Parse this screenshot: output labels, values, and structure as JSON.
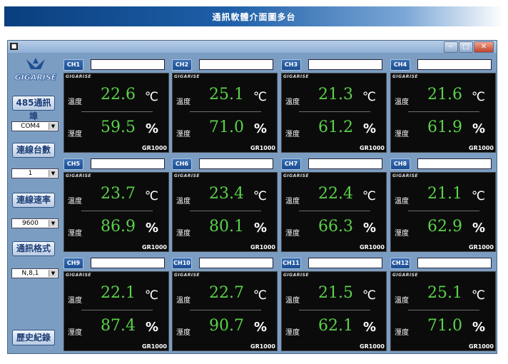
{
  "banner": {
    "title": "通訊軟體介面圖多台"
  },
  "window": {
    "controls": {
      "minimize": "−",
      "maximize": "□",
      "close": "✕"
    }
  },
  "sidebar": {
    "logo_text": "GIGARISE",
    "comm_port_label": "485通訊埠",
    "comm_port_value": "COM4",
    "device_count_label": "連線台數",
    "device_count_value": "1",
    "baud_label": "連線速率",
    "baud_value": "9600",
    "format_label": "通訊格式",
    "format_value": "N,8,1",
    "history_label": "歷史紀錄"
  },
  "panel_labels": {
    "temp": "溫度",
    "humid": "溼度",
    "temp_unit": "℃",
    "humid_unit": "%",
    "brand": "GIGARISE"
  },
  "channels": [
    {
      "label": "CH1",
      "name": "",
      "temp": "22.6",
      "humid": "59.5",
      "model": "GR1000"
    },
    {
      "label": "CH2",
      "name": "",
      "temp": "25.1",
      "humid": "71.0",
      "model": "GR1000"
    },
    {
      "label": "CH3",
      "name": "",
      "temp": "21.3",
      "humid": "61.2",
      "model": "GR1000"
    },
    {
      "label": "CH4",
      "name": "",
      "temp": "21.6",
      "humid": "61.9",
      "model": "GR1000"
    },
    {
      "label": "CH5",
      "name": "",
      "temp": "23.7",
      "humid": "86.9",
      "model": "GR1000"
    },
    {
      "label": "CH6",
      "name": "",
      "temp": "23.4",
      "humid": "80.1",
      "model": "GR1000"
    },
    {
      "label": "CH7",
      "name": "",
      "temp": "22.4",
      "humid": "66.3",
      "model": "GR1000"
    },
    {
      "label": "CH8",
      "name": "",
      "temp": "21.1",
      "humid": "62.9",
      "model": "GR1000"
    },
    {
      "label": "CH9",
      "name": "",
      "temp": "22.1",
      "humid": "87.4",
      "model": "GR1000"
    },
    {
      "label": "CH10",
      "name": "",
      "temp": "22.7",
      "humid": "90.7",
      "model": "GR1000"
    },
    {
      "label": "CH11",
      "name": "",
      "temp": "21.5",
      "humid": "62.1",
      "model": "GR1000"
    },
    {
      "label": "CH12",
      "name": "",
      "temp": "25.1",
      "humid": "71.0",
      "model": "GR1000"
    }
  ],
  "colors": {
    "accent": "#1b4d92",
    "reading": "#5ad24a",
    "panel_bg": "#0b0b0b",
    "window_bg": "#7c9dc2"
  }
}
